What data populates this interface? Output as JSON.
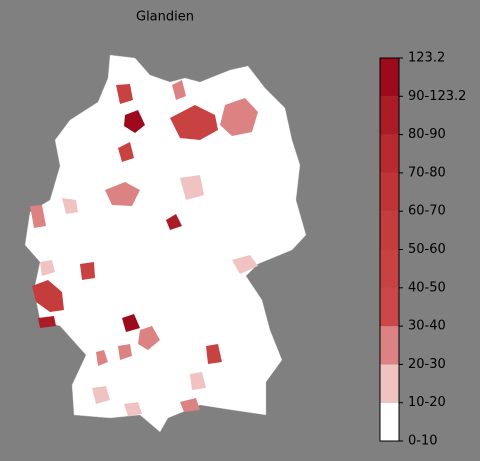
{
  "title": "Glandien",
  "colorbar": {
    "labels": [
      "0-10",
      "10-20",
      "20-30",
      "30-40",
      "40-50",
      "50-60",
      "60-70",
      "70-80",
      "80-90",
      "90-123.2",
      "123.2"
    ],
    "colors": [
      "#ffffff",
      "#f0c2c2",
      "#dc8282",
      "#cc4848",
      "#c84242",
      "#c43c3c",
      "#bf3535",
      "#b82a2e",
      "#ac1c26",
      "#9c0a1c"
    ]
  }
}
